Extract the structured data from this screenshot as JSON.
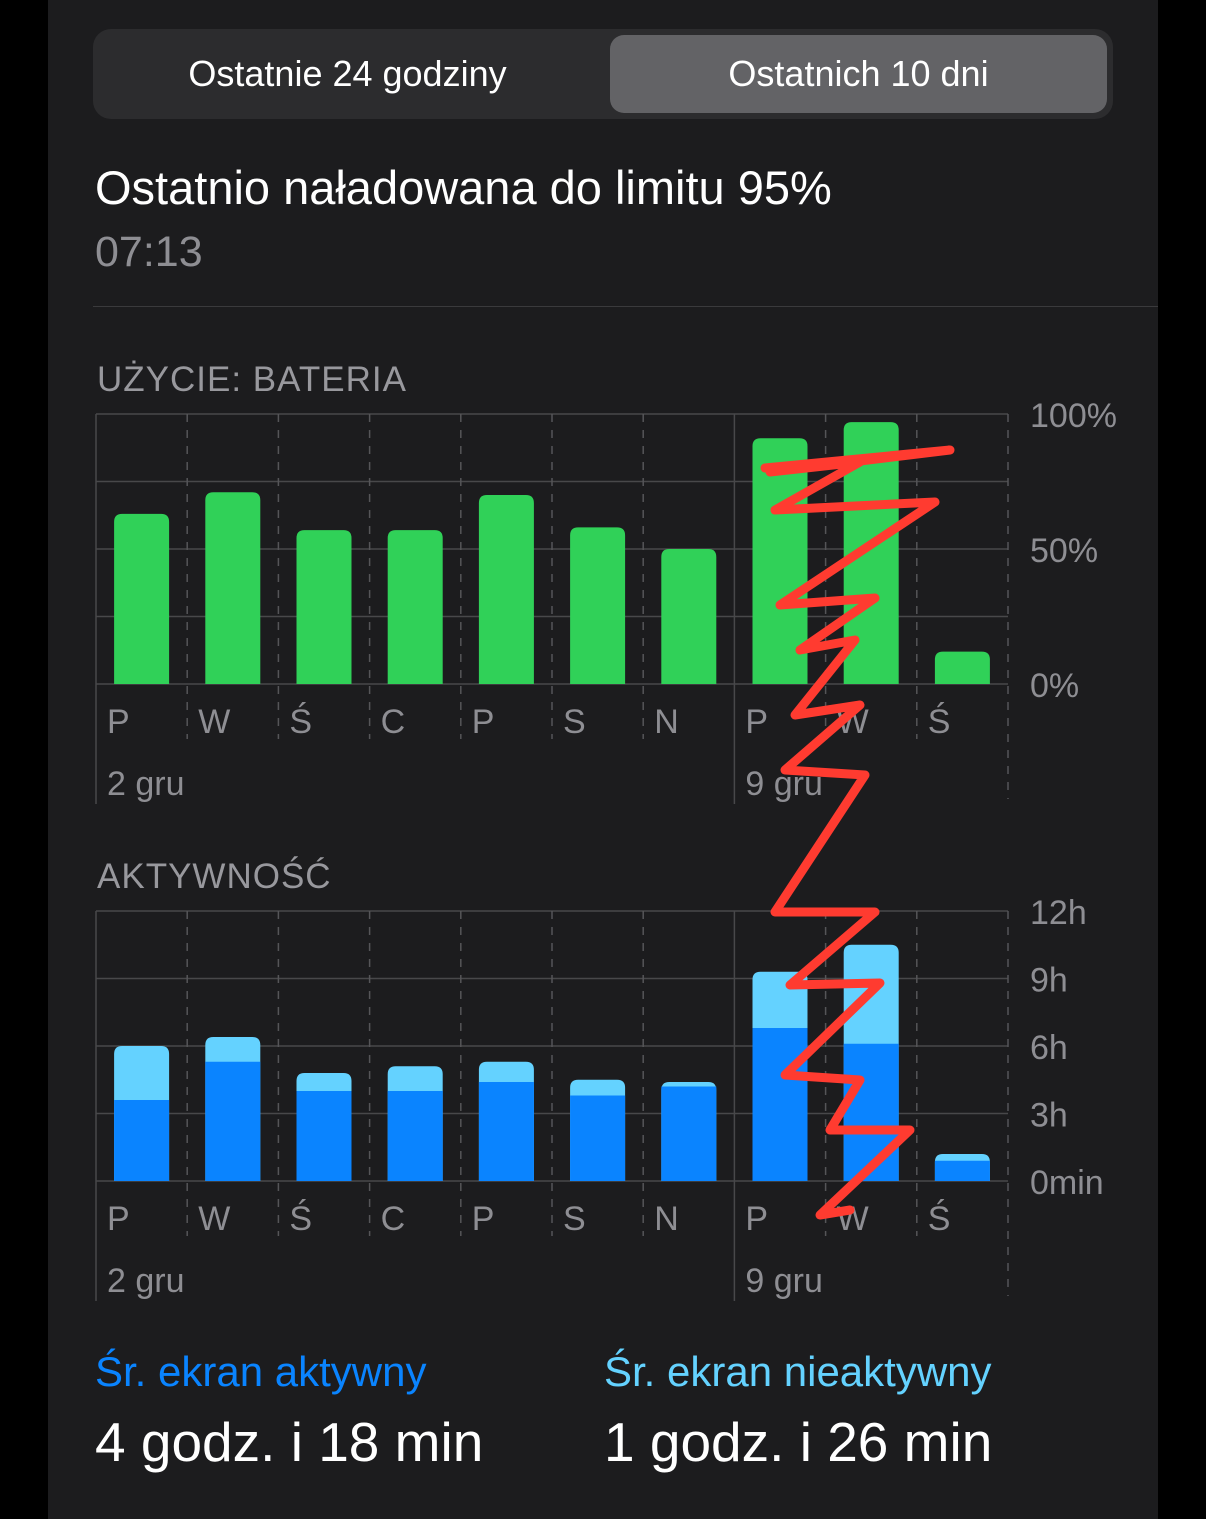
{
  "segmented_control": {
    "tabs": [
      {
        "label": "Ostatnie 24 godziny",
        "selected": false
      },
      {
        "label": "Ostatnich 10 dni",
        "selected": true
      }
    ]
  },
  "last_charged": {
    "title": "Ostatnio naładowana do limitu 95%",
    "time": "07:13"
  },
  "colors": {
    "battery": "#30d158",
    "screen_on": "#0a84ff",
    "screen_off": "#64d2ff",
    "accent_on": "#0a84ff",
    "accent_off": "#64d2ff",
    "annotation": "#ff3b30"
  },
  "chart_data": [
    {
      "type": "bar",
      "title": "UŻYCIE: BATERIA",
      "categories": [
        "P",
        "W",
        "Ś",
        "C",
        "P",
        "S",
        "N",
        "P",
        "W",
        "Ś"
      ],
      "date_labels": [
        {
          "index": 0,
          "label": "2 gru"
        },
        {
          "index": 7,
          "label": "9 gru"
        }
      ],
      "values": [
        63,
        71,
        57,
        57,
        70,
        58,
        50,
        91,
        97,
        12
      ],
      "ylim": [
        0,
        100
      ],
      "yticks": [
        "100%",
        "50%",
        "0%"
      ],
      "grid": true
    },
    {
      "type": "bar",
      "stacked": true,
      "title": "AKTYWNOŚĆ",
      "categories": [
        "P",
        "W",
        "Ś",
        "C",
        "P",
        "S",
        "N",
        "P",
        "W",
        "Ś"
      ],
      "date_labels": [
        {
          "index": 0,
          "label": "2 gru"
        },
        {
          "index": 7,
          "label": "9 gru"
        }
      ],
      "series": [
        {
          "key": "screen_on",
          "values": [
            3.6,
            5.3,
            4.0,
            4.0,
            4.4,
            3.8,
            4.2,
            6.8,
            6.1,
            0.9
          ]
        },
        {
          "key": "screen_off",
          "values": [
            2.4,
            1.1,
            0.8,
            1.1,
            0.9,
            0.7,
            0.2,
            2.5,
            4.4,
            0.3
          ]
        }
      ],
      "ylim": [
        0,
        12
      ],
      "yticks": [
        "12h",
        "9h",
        "6h",
        "3h",
        "0min"
      ],
      "grid": true
    }
  ],
  "stats": {
    "screen_on": {
      "label": "Śr. ekran aktywny",
      "value": "4 godz. i 18 min"
    },
    "screen_off": {
      "label": "Śr. ekran nieaktywny",
      "value": "1 godz. i 26 min"
    }
  }
}
